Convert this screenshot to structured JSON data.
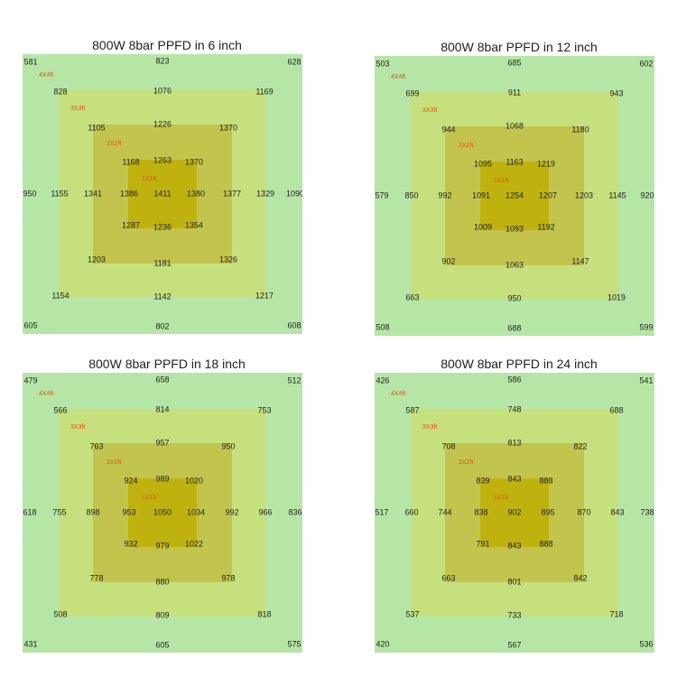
{
  "colors": {
    "zone_4x4": "#b6e6a6",
    "zone_3x3": "#c6e07e",
    "zone_2x2": "#c2c44e",
    "zone_1x1": "#c0b20e",
    "zone_label": "#e0521a",
    "value_text": "#1f1f1f"
  },
  "chart_data": [
    {
      "type": "heatmap",
      "title": "800W 8bar PPFD in 6 inch",
      "zone_labels": [
        "4X4ft",
        "3X3ft",
        "2X2ft",
        "1X1ft"
      ],
      "rings": {
        "outer": {
          "corners": [
            "581",
            "628",
            "605",
            "608"
          ],
          "top": "823",
          "bottom": "802",
          "left": "950",
          "right": "1090"
        },
        "ring_4x4": {
          "corners": [
            "828",
            "1169",
            "1154",
            "1217"
          ],
          "top": "1076",
          "bottom": "1142",
          "left": "1155",
          "right": "1329"
        },
        "ring_3x3": {
          "corners": [
            "1105",
            "1370",
            "1203",
            "1326"
          ],
          "top": "1226",
          "bottom": "1181",
          "left": "1341",
          "right": "1377"
        },
        "ring_2x2": {
          "corners": [
            "1168",
            "1370",
            "1287",
            "1354"
          ],
          "top": "1263",
          "bottom": "1236",
          "left": "1386",
          "right": "1380"
        },
        "center": "1411"
      }
    },
    {
      "type": "heatmap",
      "title": "800W 8bar PPFD in 12 inch",
      "zone_labels": [
        "4X4ft",
        "3X3ft",
        "2X2ft",
        "1X1ft"
      ],
      "rings": {
        "outer": {
          "corners": [
            "503",
            "602",
            "508",
            "599"
          ],
          "top": "685",
          "bottom": "688",
          "left": "579",
          "right": "920"
        },
        "ring_4x4": {
          "corners": [
            "699",
            "943",
            "663",
            "1019"
          ],
          "top": "911",
          "bottom": "950",
          "left": "850",
          "right": "1145"
        },
        "ring_3x3": {
          "corners": [
            "944",
            "1180",
            "902",
            "1147"
          ],
          "top": "1068",
          "bottom": "1063",
          "left": "992",
          "right": "1203"
        },
        "ring_2x2": {
          "corners": [
            "1095",
            "1219",
            "1009",
            "1192"
          ],
          "top": "1163",
          "bottom": "1093",
          "left": "1091",
          "right": "1207"
        },
        "center": "1254"
      }
    },
    {
      "type": "heatmap",
      "title": "800W 8bar PPFD in 18 inch",
      "zone_labels": [
        "4X4ft",
        "3X3ft",
        "2X2ft",
        "1X1ft"
      ],
      "rings": {
        "outer": {
          "corners": [
            "479",
            "512",
            "431",
            "575"
          ],
          "top": "658",
          "bottom": "605",
          "left": "618",
          "right": "836"
        },
        "ring_4x4": {
          "corners": [
            "566",
            "753",
            "508",
            "818"
          ],
          "top": "814",
          "bottom": "809",
          "left": "755",
          "right": "966"
        },
        "ring_3x3": {
          "corners": [
            "763",
            "950",
            "778",
            "978"
          ],
          "top": "957",
          "bottom": "880",
          "left": "898",
          "right": "992"
        },
        "ring_2x2": {
          "corners": [
            "924",
            "1020",
            "932",
            "1022"
          ],
          "top": "989",
          "bottom": "979",
          "left": "953",
          "right": "1034"
        },
        "center": "1050"
      }
    },
    {
      "type": "heatmap",
      "title": "800W 8bar PPFD in 24 inch",
      "zone_labels": [
        "4X4ft",
        "3X3ft",
        "2X2ft",
        "1X1ft"
      ],
      "rings": {
        "outer": {
          "corners": [
            "426",
            "541",
            "420",
            "536"
          ],
          "top": "586",
          "bottom": "567",
          "left": "517",
          "right": "738"
        },
        "ring_4x4": {
          "corners": [
            "587",
            "688",
            "537",
            "718"
          ],
          "top": "748",
          "bottom": "733",
          "left": "660",
          "right": "843"
        },
        "ring_3x3": {
          "corners": [
            "708",
            "822",
            "663",
            "842"
          ],
          "top": "813",
          "bottom": "801",
          "left": "744",
          "right": "870"
        },
        "ring_2x2": {
          "corners": [
            "839",
            "888",
            "791",
            "888"
          ],
          "top": "843",
          "bottom": "843",
          "left": "838",
          "right": "895"
        },
        "center": "902"
      }
    }
  ]
}
